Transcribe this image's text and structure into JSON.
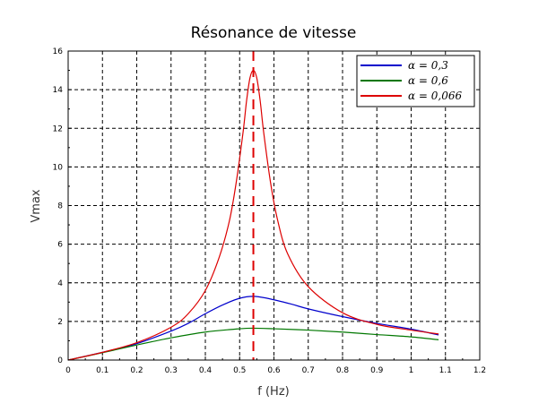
{
  "chart_data": {
    "type": "line",
    "title": "Résonance de vitesse",
    "xlabel": "f (Hz)",
    "ylabel": "Vmax",
    "xlim": [
      0,
      1.2
    ],
    "ylim": [
      0,
      16
    ],
    "xticks": [
      0,
      0.1,
      0.2,
      0.3,
      0.4,
      0.5,
      0.6,
      0.7,
      0.8,
      0.9,
      1,
      1.1,
      1.2
    ],
    "xtick_labels": [
      "0",
      "0.1",
      "0.2",
      "0.3",
      "0.4",
      "0.5",
      "0.6",
      "0.7",
      "0.8",
      "0.9",
      "1",
      "1.1",
      "1.2"
    ],
    "yticks": [
      0,
      2,
      4,
      6,
      8,
      10,
      12,
      14,
      16
    ],
    "ytick_labels": [
      "0",
      "2",
      "4",
      "6",
      "8",
      "10",
      "12",
      "14",
      "16"
    ],
    "grid": true,
    "legend_position": "top-right",
    "vline": {
      "x": 0.54,
      "color": "#dd0000",
      "style": "dashed"
    },
    "series": [
      {
        "name": "α = 0,3",
        "color": "#0000cc",
        "x": [
          0,
          0.1,
          0.2,
          0.3,
          0.35,
          0.4,
          0.45,
          0.5,
          0.54,
          0.58,
          0.65,
          0.7,
          0.8,
          0.9,
          1.0,
          1.08
        ],
        "y": [
          0,
          0.4,
          0.85,
          1.5,
          1.9,
          2.4,
          2.85,
          3.2,
          3.3,
          3.2,
          2.9,
          2.65,
          2.25,
          1.9,
          1.6,
          1.3
        ]
      },
      {
        "name": "α = 0,6",
        "color": "#007700",
        "x": [
          0,
          0.1,
          0.2,
          0.3,
          0.4,
          0.5,
          0.54,
          0.6,
          0.7,
          0.8,
          0.9,
          1.0,
          1.08
        ],
        "y": [
          0,
          0.38,
          0.78,
          1.15,
          1.45,
          1.62,
          1.65,
          1.62,
          1.55,
          1.45,
          1.32,
          1.2,
          1.05
        ]
      },
      {
        "name": "α = 0,066",
        "color": "#dd0000",
        "x": [
          0,
          0.1,
          0.2,
          0.3,
          0.35,
          0.4,
          0.44,
          0.47,
          0.49,
          0.51,
          0.52,
          0.53,
          0.54,
          0.55,
          0.56,
          0.57,
          0.59,
          0.61,
          0.64,
          0.7,
          0.8,
          0.9,
          1.0,
          1.08
        ],
        "y": [
          0,
          0.4,
          0.9,
          1.7,
          2.4,
          3.6,
          5.3,
          7.2,
          9.2,
          11.8,
          13.4,
          14.6,
          15.0,
          14.6,
          13.4,
          11.8,
          9.2,
          7.3,
          5.5,
          3.8,
          2.45,
          1.85,
          1.55,
          1.35
        ]
      }
    ]
  }
}
